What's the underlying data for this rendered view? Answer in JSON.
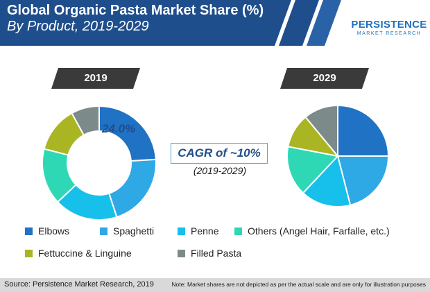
{
  "title": {
    "line1": "Global Organic Pasta Market Share (%)",
    "line2": "By Product, 2019-2029"
  },
  "logo": {
    "main": "PERSISTENCE",
    "sub": "MARKET RESEARCH"
  },
  "cagr": {
    "label": "CAGR of ~10%",
    "period": "(2019-2029)"
  },
  "source": "Source: Persistence Market Research, 2019",
  "note": "Note: Market shares are not depicted as per the actual scale and are only for illustration purposes",
  "colors": {
    "banner": "#1f4e8c",
    "tab": "#3a3a3a",
    "footer": "#d9d9d9"
  },
  "chart_data": [
    {
      "type": "pie",
      "variant": "donut",
      "title": "2019",
      "series": [
        {
          "name": "Elbows",
          "value": 24.0,
          "color": "#1f72c4"
        },
        {
          "name": "Spaghetti",
          "value": 21.0,
          "color": "#2fa8e6"
        },
        {
          "name": "Penne",
          "value": 18.0,
          "color": "#17c0ea"
        },
        {
          "name": "Others (Angel Hair, Farfalle, etc.)",
          "value": 16.0,
          "color": "#2fd8b4"
        },
        {
          "name": "Fettuccine & Linguine",
          "value": 13.0,
          "color": "#aab523"
        },
        {
          "name": "Filled Pasta",
          "value": 8.0,
          "color": "#7d8a8a"
        }
      ],
      "data_label": "24.0%"
    },
    {
      "type": "pie",
      "title": "2029",
      "series": [
        {
          "name": "Elbows",
          "value": 25.0,
          "color": "#1f72c4"
        },
        {
          "name": "Spaghetti",
          "value": 21.0,
          "color": "#2fa8e6"
        },
        {
          "name": "Penne",
          "value": 16.0,
          "color": "#17c0ea"
        },
        {
          "name": "Others (Angel Hair, Farfalle, etc.)",
          "value": 16.0,
          "color": "#2fd8b4"
        },
        {
          "name": "Fettuccine & Linguine",
          "value": 11.0,
          "color": "#aab523"
        },
        {
          "name": "Filled Pasta",
          "value": 11.0,
          "color": "#7d8a8a"
        }
      ]
    }
  ],
  "legend": [
    {
      "label": "Elbows",
      "color": "#1f72c4"
    },
    {
      "label": "Spaghetti",
      "color": "#2fa8e6"
    },
    {
      "label": "Penne",
      "color": "#17c0ea"
    },
    {
      "label": "Others (Angel Hair, Farfalle, etc.)",
      "color": "#2fd8b4"
    },
    {
      "label": "Fettuccine & Linguine",
      "color": "#aab523"
    },
    {
      "label": "Filled Pasta",
      "color": "#7d8a8a"
    }
  ]
}
